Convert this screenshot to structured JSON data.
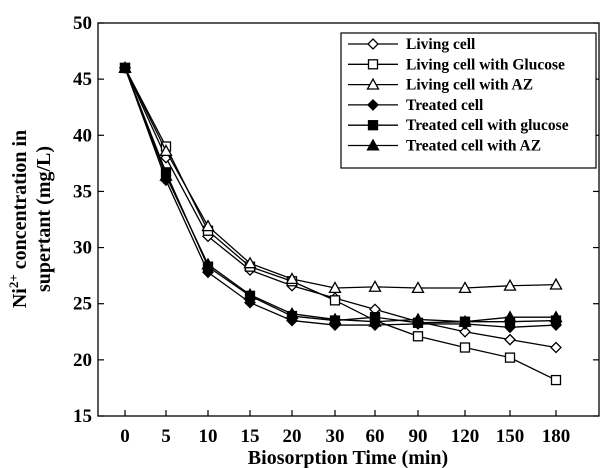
{
  "chart_data": {
    "type": "line",
    "title": "",
    "xlabel": "Biosorption Time (min)",
    "ylabel": "concentration in supertant (mg/L)",
    "ylabel_prefix": "Ni",
    "ylabel_superscript": "2+",
    "ylabel_line1_suffix": "concentration in",
    "ylabel_line2": "supertant (mg/L)",
    "categories": [
      "0",
      "5",
      "10",
      "15",
      "20",
      "30",
      "60",
      "90",
      "120",
      "150",
      "180"
    ],
    "ylim": [
      15,
      50
    ],
    "yticks": [
      "15",
      "20",
      "25",
      "30",
      "35",
      "40",
      "45",
      "50"
    ],
    "grid": false,
    "legend_position": "top-right",
    "series": [
      {
        "name": "Living cell",
        "marker": "diamond-open",
        "values": [
          46.0,
          38.0,
          31.0,
          28.0,
          26.6,
          25.5,
          24.5,
          23.4,
          22.5,
          21.8,
          21.1
        ]
      },
      {
        "name": "Living cell with Glucose",
        "marker": "square-open",
        "values": [
          46.0,
          39.0,
          31.5,
          28.3,
          27.0,
          25.3,
          23.5,
          22.1,
          21.1,
          20.2,
          18.2
        ]
      },
      {
        "name": "Living cell with AZ",
        "marker": "triangle-open",
        "values": [
          46.0,
          38.6,
          31.9,
          28.6,
          27.2,
          26.4,
          26.5,
          26.4,
          26.4,
          26.6,
          26.7
        ]
      },
      {
        "name": "Treated cell",
        "marker": "diamond-filled",
        "values": [
          46.0,
          36.0,
          27.8,
          25.1,
          23.5,
          23.1,
          23.1,
          23.2,
          23.2,
          22.9,
          23.1
        ]
      },
      {
        "name": "Treated cell with glucose",
        "marker": "square-filled",
        "values": [
          46.0,
          36.7,
          28.3,
          25.7,
          23.9,
          23.5,
          23.8,
          23.3,
          23.4,
          23.4,
          23.5
        ]
      },
      {
        "name": "Treated cell with AZ",
        "marker": "triangle-filled",
        "values": [
          46.0,
          36.4,
          28.5,
          25.8,
          24.1,
          23.6,
          23.4,
          23.6,
          23.4,
          23.8,
          23.8
        ]
      }
    ]
  }
}
